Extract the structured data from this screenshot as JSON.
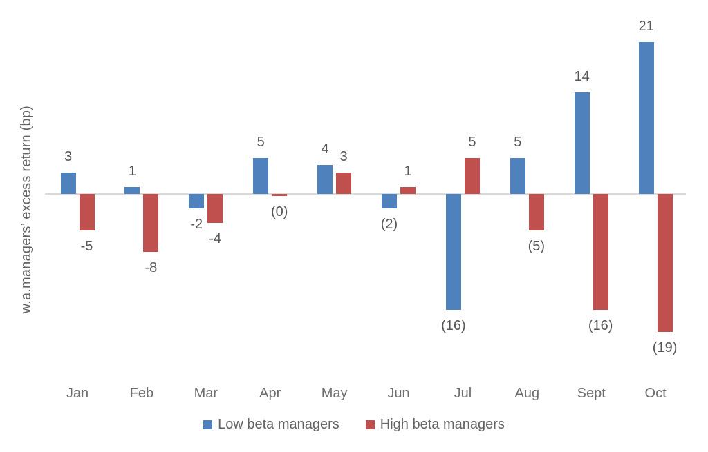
{
  "chart_data": {
    "type": "bar",
    "title": "",
    "ylabel": "w.a.managers’ excess return (bp)",
    "xlabel": "",
    "categories": [
      "Jan",
      "Feb",
      "Mar",
      "Apr",
      "May",
      "Jun",
      "Jul",
      "Aug",
      "Sept",
      "Oct"
    ],
    "series": [
      {
        "name": "Low beta managers",
        "color": "#4F81BD",
        "values": [
          3,
          1,
          -2,
          5,
          4,
          -2,
          -16,
          5,
          14,
          21
        ],
        "labels": [
          "3",
          "1",
          "-2",
          "5",
          "4",
          "(2)",
          "(16)",
          "5",
          "14",
          "21"
        ]
      },
      {
        "name": "High beta managers",
        "color": "#C0504D",
        "values": [
          -5,
          -8,
          -4,
          -0.3,
          3,
          1,
          5,
          -5,
          -16,
          -19
        ],
        "labels": [
          "-5",
          "-8",
          "-4",
          "(0)",
          "3",
          "1",
          "5",
          "(5)",
          "(16)",
          "(19)"
        ]
      }
    ],
    "ylim": [
      -22,
      24
    ],
    "grid": false,
    "axis_line_color": "#D9D9D9",
    "label_color": "#565656",
    "tick_color": "#6E6E6E",
    "legend_position": "bottom"
  }
}
